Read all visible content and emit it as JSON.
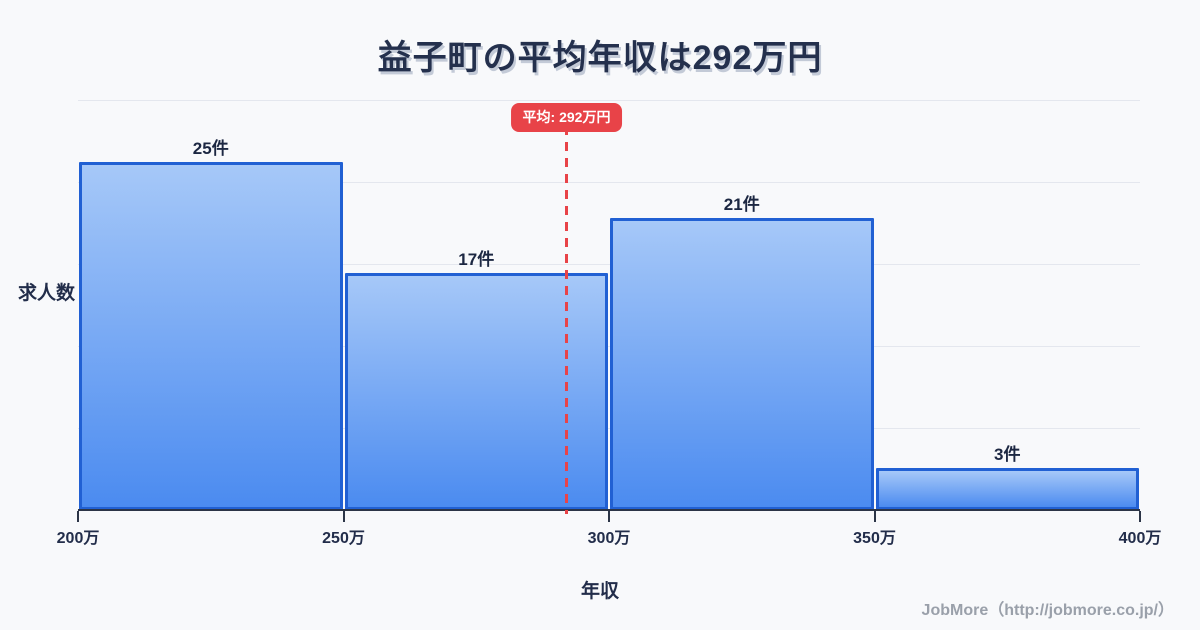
{
  "title": {
    "text": "益子町の平均年収は292万円"
  },
  "chart_data": {
    "type": "bar",
    "subtype": "histogram",
    "title": "益子町の平均年収は292万円",
    "xlabel": "年収",
    "ylabel": "求人数",
    "bin_edges": [
      200,
      250,
      300,
      350,
      400
    ],
    "x_tick_labels": [
      "200万",
      "250万",
      "300万",
      "350万",
      "400万"
    ],
    "values": [
      25,
      17,
      21,
      3
    ],
    "bar_labels": [
      "25件",
      "17件",
      "21件",
      "3件"
    ],
    "average_value": 292,
    "average_label": "平均: 292万円",
    "ylim": [
      0,
      29.4
    ],
    "grid": "horizontal-only",
    "legend": "none",
    "colors": {
      "background": "#f8f9fb",
      "bar_fill_top": "#a6c8f8",
      "bar_fill_bottom": "#4b8bf0",
      "bar_border": "#2160d3",
      "average_accent": "#e84348",
      "gridline": "#e4e7ee",
      "axis": "#2c3547",
      "title_text": "#24304d",
      "label_text": "#1c2742",
      "footer_text": "#9aa0aa"
    }
  },
  "footer": {
    "text": "JobMore（http://jobmore.co.jp/）"
  }
}
